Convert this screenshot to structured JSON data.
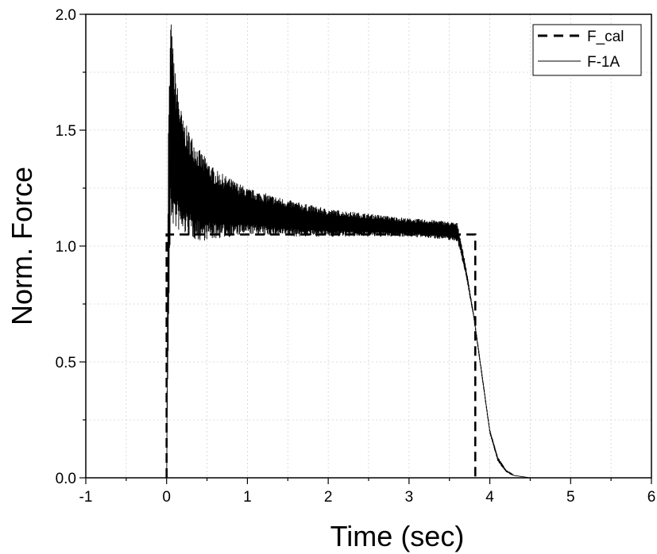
{
  "chart_data": {
    "type": "line",
    "title": "",
    "xlabel": "Time (sec)",
    "ylabel": "Norm. Force",
    "xlim": [
      -1,
      6
    ],
    "ylim": [
      0.0,
      2.0
    ],
    "xticks": [
      -1,
      0,
      1,
      2,
      3,
      4,
      5,
      6
    ],
    "xtick_labels": [
      "-1",
      "0",
      "1",
      "2",
      "3",
      "4",
      "5",
      "6"
    ],
    "yticks": [
      0.0,
      0.5,
      1.0,
      1.5,
      2.0
    ],
    "ytick_labels": [
      "0.0",
      "0.5",
      "1.0",
      "1.5",
      "2.0"
    ],
    "grid": true,
    "legend_position": "top-right",
    "series": [
      {
        "name": "F_cal",
        "style": "dashed",
        "color": "#000000",
        "x": [
          0.0,
          0.0,
          3.82,
          3.82
        ],
        "y": [
          0.0,
          1.05,
          1.05,
          0.0
        ]
      },
      {
        "name": "F-1A",
        "style": "solid",
        "color": "#000000",
        "x": [
          0.0,
          0.02,
          0.05,
          0.1,
          0.2,
          0.4,
          0.6,
          1.0,
          1.5,
          2.0,
          2.5,
          3.0,
          3.4,
          3.6,
          3.7,
          3.8,
          3.9,
          4.0,
          4.1,
          4.2,
          4.3,
          4.4,
          4.5
        ],
        "y": [
          0.0,
          1.0,
          1.55,
          1.42,
          1.3,
          1.22,
          1.18,
          1.15,
          1.12,
          1.1,
          1.09,
          1.08,
          1.07,
          1.06,
          0.9,
          0.7,
          0.45,
          0.2,
          0.08,
          0.03,
          0.01,
          0.005,
          0.0
        ],
        "noise_envelope_y": [
          0.0,
          0.5,
          0.45,
          0.35,
          0.25,
          0.2,
          0.15,
          0.1,
          0.08,
          0.06,
          0.05,
          0.04,
          0.04,
          0.04,
          0.02,
          0.01,
          0.01,
          0.01,
          0.01,
          0.005,
          0.0,
          0.0,
          0.0
        ]
      }
    ]
  }
}
